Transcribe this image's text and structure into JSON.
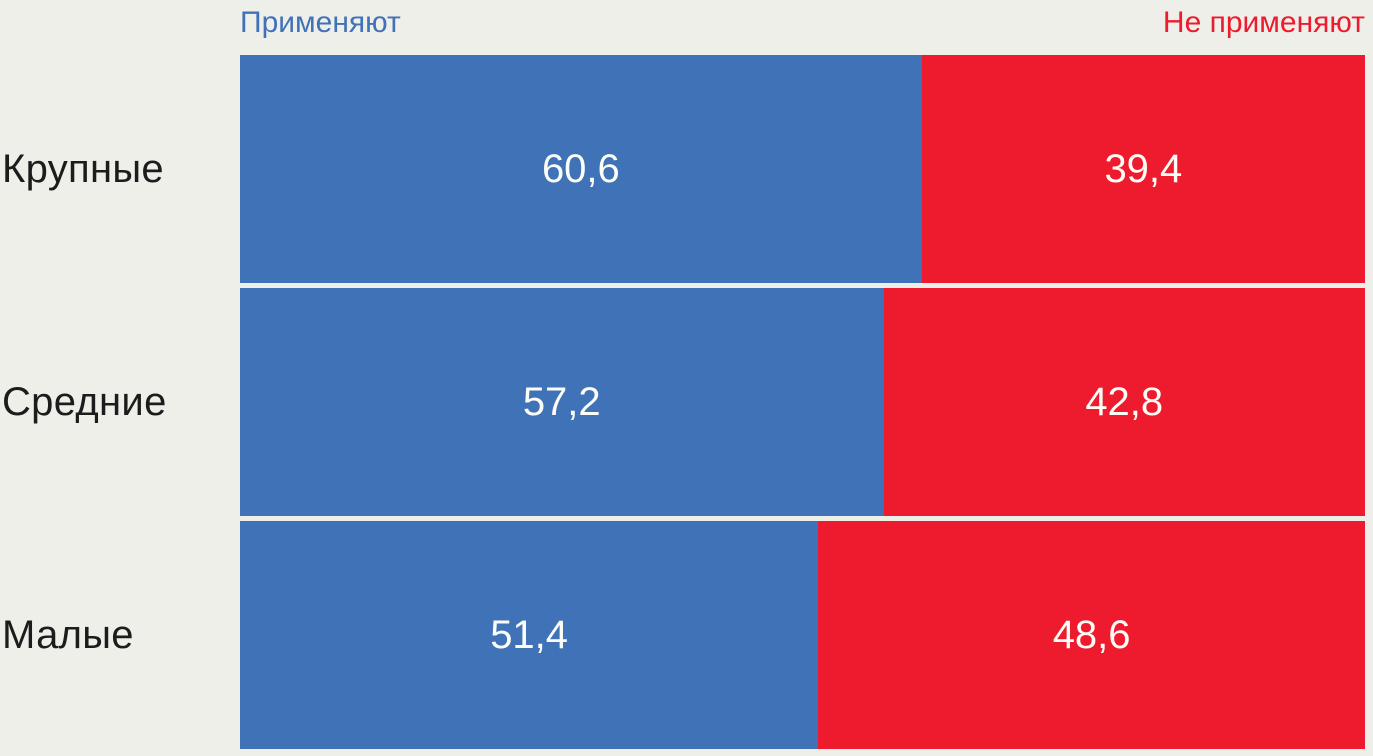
{
  "chart_data": {
    "type": "bar",
    "orientation": "horizontal",
    "stacked": true,
    "title": "",
    "xlabel": "",
    "ylabel": "",
    "xlim": [
      0,
      100
    ],
    "grid": false,
    "legend_position": "top",
    "value_format": "comma-decimal",
    "categories": [
      "Крупные",
      "Средние",
      "Малые"
    ],
    "series": [
      {
        "name": "Применяют",
        "color": "#4072B8",
        "values": [
          60.6,
          57.2,
          51.4
        ]
      },
      {
        "name": "Не применяют",
        "color": "#ED1B2D",
        "values": [
          39.4,
          42.8,
          48.6
        ]
      }
    ],
    "rows": [
      {
        "label": "Крупные",
        "apply_pct": 60.6,
        "not_apply_pct": 39.4,
        "apply_label": "60,6",
        "not_apply_label": "39,4"
      },
      {
        "label": "Средние",
        "apply_pct": 57.2,
        "not_apply_pct": 42.8,
        "apply_label": "57,2",
        "not_apply_label": "42,8"
      },
      {
        "label": "Малые",
        "apply_pct": 51.4,
        "not_apply_pct": 48.6,
        "apply_label": "51,4",
        "not_apply_label": "48,6"
      }
    ]
  },
  "legend": {
    "apply_label": "Применяют",
    "not_apply_label": "Не применяют"
  },
  "colors": {
    "apply_blue": "#4072B8",
    "not_apply_red": "#ED1B2D",
    "background": "#EFEFEA",
    "category_text": "#1C1C1C",
    "value_text": "#FDFDF8"
  }
}
